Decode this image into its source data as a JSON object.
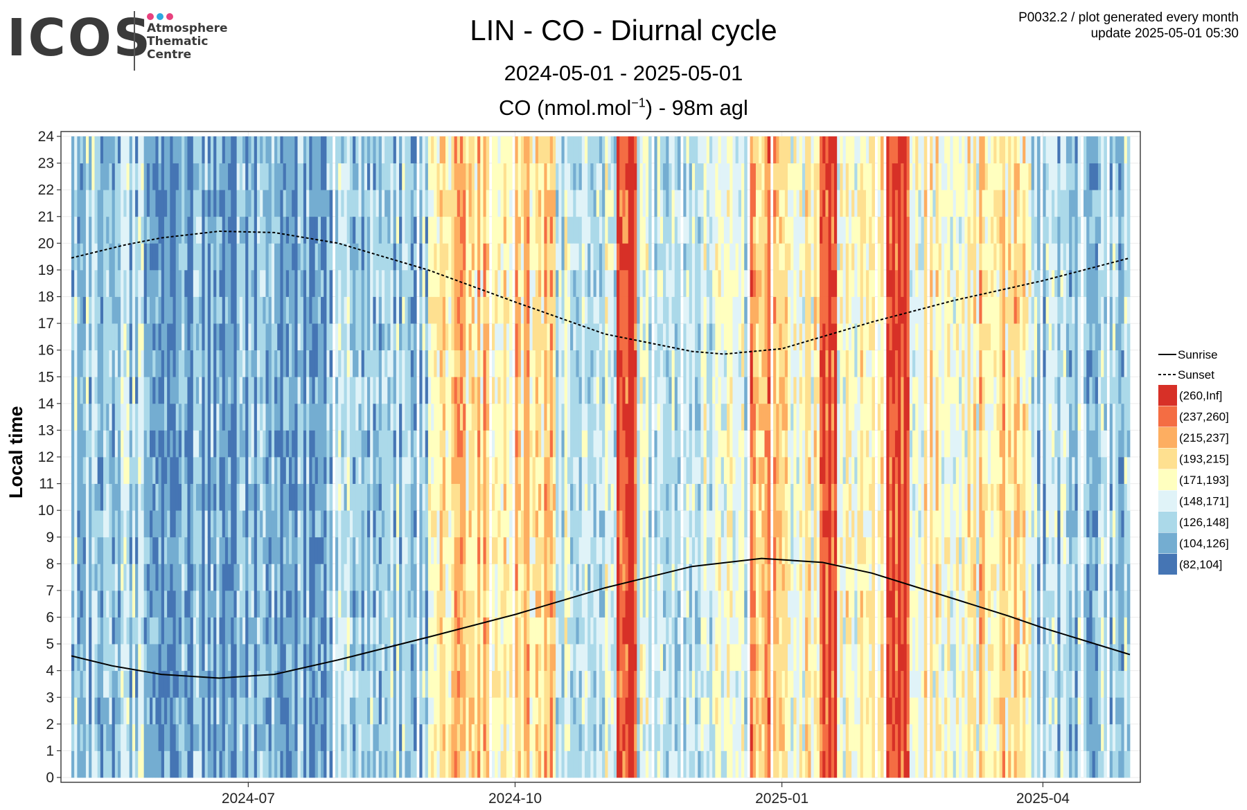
{
  "logo": {
    "wordmark": "ICOS",
    "lines": [
      "Atmosphere",
      "Thematic",
      "Centre"
    ],
    "dot_colors": [
      "#e8417e",
      "#2da9e1",
      "#e8417e"
    ]
  },
  "meta": {
    "line1": "P0032.2 / plot generated every month",
    "line2": "update  2025-05-01 05:30"
  },
  "chart_data": {
    "type": "heatmap",
    "title": "LIN - CO - Diurnal cycle",
    "subtitle": "2024-05-01 - 2025-05-01",
    "variable_label": "CO (nmol.mol",
    "variable_sup": "−1",
    "variable_suffix": ") - 98m agl",
    "ylabel": "Local time",
    "x_range": [
      "2024-05-01",
      "2025-05-01"
    ],
    "xticks": [
      "2024-07",
      "2024-10",
      "2025-01",
      "2025-04"
    ],
    "xtick_dates": [
      "2024-07-01",
      "2024-10-01",
      "2025-01-01",
      "2025-04-01"
    ],
    "y_range": [
      0,
      24
    ],
    "yticks": [
      0,
      1,
      2,
      3,
      4,
      5,
      6,
      7,
      8,
      9,
      10,
      11,
      12,
      13,
      14,
      15,
      16,
      17,
      18,
      19,
      20,
      21,
      22,
      23,
      24
    ],
    "grid": true,
    "legend_position": "right",
    "bins": [
      {
        "label": "(260,Inf]",
        "color": "#d73027"
      },
      {
        "label": "(237,260]",
        "color": "#f46d43"
      },
      {
        "label": "(215,237]",
        "color": "#fdae61"
      },
      {
        "label": "(193,215]",
        "color": "#fee090"
      },
      {
        "label": "(171,193]",
        "color": "#ffffbf"
      },
      {
        "label": "(148,171]",
        "color": "#e0f3f8"
      },
      {
        "label": "(126,148]",
        "color": "#abd9e9"
      },
      {
        "label": "(104,126]",
        "color": "#74add1"
      },
      {
        "label": "(82,104]",
        "color": "#4575b4"
      }
    ],
    "lines": [
      {
        "name": "Sunrise",
        "style": "solid",
        "points": [
          [
            "2024-05-01",
            4.55
          ],
          [
            "2024-05-15",
            4.18
          ],
          [
            "2024-06-01",
            3.86
          ],
          [
            "2024-06-21",
            3.72
          ],
          [
            "2024-07-10",
            3.86
          ],
          [
            "2024-08-01",
            4.4
          ],
          [
            "2024-09-01",
            5.25
          ],
          [
            "2024-10-01",
            6.1
          ],
          [
            "2024-11-01",
            7.1
          ],
          [
            "2024-12-01",
            7.9
          ],
          [
            "2024-12-25",
            8.2
          ],
          [
            "2025-01-15",
            8.05
          ],
          [
            "2025-02-01",
            7.65
          ],
          [
            "2025-03-01",
            6.7
          ],
          [
            "2025-03-20",
            6.05
          ],
          [
            "2025-04-01",
            5.6
          ],
          [
            "2025-05-01",
            4.6
          ]
        ]
      },
      {
        "name": "Sunset",
        "style": "dashed",
        "points": [
          [
            "2024-05-01",
            19.45
          ],
          [
            "2024-05-20",
            19.95
          ],
          [
            "2024-06-01",
            20.2
          ],
          [
            "2024-06-21",
            20.45
          ],
          [
            "2024-07-10",
            20.4
          ],
          [
            "2024-08-01",
            20.0
          ],
          [
            "2024-09-01",
            19.0
          ],
          [
            "2024-10-01",
            17.8
          ],
          [
            "2024-11-01",
            16.6
          ],
          [
            "2024-12-01",
            15.95
          ],
          [
            "2024-12-12",
            15.85
          ],
          [
            "2025-01-01",
            16.05
          ],
          [
            "2025-02-01",
            17.05
          ],
          [
            "2025-03-01",
            17.85
          ],
          [
            "2025-04-01",
            18.6
          ],
          [
            "2025-05-01",
            19.45
          ]
        ]
      }
    ],
    "daily_level_profile": {
      "unit": "bin index per day (0=(82,104] ... 8=(260,Inf]) over 2024-05-01..2025-05-01",
      "segments": [
        {
          "from": "2024-05-01",
          "to": "2024-06-01",
          "typical_bin": 2
        },
        {
          "from": "2024-06-01",
          "to": "2024-08-01",
          "typical_bin": 1
        },
        {
          "from": "2024-08-01",
          "to": "2024-09-01",
          "typical_bin": 2
        },
        {
          "from": "2024-09-01",
          "to": "2024-10-15",
          "typical_bin": 5
        },
        {
          "from": "2024-10-15",
          "to": "2024-11-05",
          "typical_bin": 3
        },
        {
          "from": "2024-11-05",
          "to": "2024-11-12",
          "typical_bin": 8
        },
        {
          "from": "2024-11-12",
          "to": "2024-12-20",
          "typical_bin": 3
        },
        {
          "from": "2024-12-20",
          "to": "2025-01-02",
          "typical_bin": 6
        },
        {
          "from": "2025-01-02",
          "to": "2025-01-14",
          "typical_bin": 4
        },
        {
          "from": "2025-01-14",
          "to": "2025-01-20",
          "typical_bin": 8
        },
        {
          "from": "2025-01-20",
          "to": "2025-02-05",
          "typical_bin": 4
        },
        {
          "from": "2025-02-05",
          "to": "2025-02-14",
          "typical_bin": 8
        },
        {
          "from": "2025-02-14",
          "to": "2025-03-10",
          "typical_bin": 4
        },
        {
          "from": "2025-03-10",
          "to": "2025-03-28",
          "typical_bin": 5
        },
        {
          "from": "2025-03-28",
          "to": "2025-05-01",
          "typical_bin": 2
        }
      ]
    }
  }
}
